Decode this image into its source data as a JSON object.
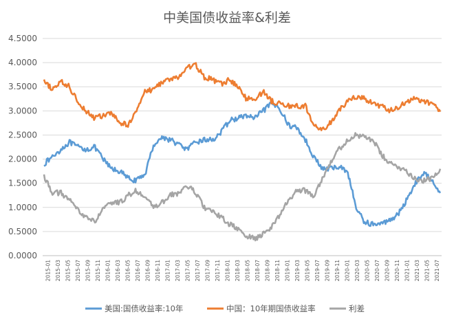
{
  "chart_data": {
    "type": "line",
    "title": "中美国债收益率&利差",
    "xlabel": "",
    "ylabel": "",
    "ylim": [
      0,
      4.5
    ],
    "y_ticks": [
      "0.0000",
      "0.5000",
      "1.0000",
      "1.5000",
      "2.0000",
      "2.5000",
      "3.0000",
      "3.5000",
      "4.0000",
      "4.5000"
    ],
    "x_ticks": [
      "2015-01",
      "2015-03",
      "2015-05",
      "2015-07",
      "2015-09",
      "2015-11",
      "2016-01",
      "2016-03",
      "2016-05",
      "2016-07",
      "2016-09",
      "2016-11",
      "2017-01",
      "2017-03",
      "2017-05",
      "2017-07",
      "2017-09",
      "2017-11",
      "2018-01",
      "2018-03",
      "2018-05",
      "2018-07",
      "2018-09",
      "2018-11",
      "2019-01",
      "2019-03",
      "2019-05",
      "2019-07",
      "2019-09",
      "2019-11",
      "2020-01",
      "2020-03",
      "2020-05",
      "2020-07",
      "2020-09",
      "2020-11",
      "2021-01",
      "2021-03",
      "2021-05",
      "2021-07"
    ],
    "legend_position": "bottom",
    "series": [
      {
        "name": "美国:国债收益率:10年",
        "color": "#5b9bd5",
        "values": [
          1.9,
          2.05,
          2.2,
          2.35,
          2.25,
          2.2,
          2.25,
          2.0,
          1.8,
          1.75,
          1.6,
          1.55,
          1.7,
          2.3,
          2.45,
          2.4,
          2.3,
          2.2,
          2.35,
          2.4,
          2.4,
          2.55,
          2.8,
          2.85,
          2.9,
          2.85,
          3.0,
          3.15,
          3.05,
          2.7,
          2.65,
          2.4,
          2.05,
          1.8,
          1.8,
          1.85,
          1.75,
          1.0,
          0.7,
          0.65,
          0.65,
          0.75,
          0.85,
          1.15,
          1.5,
          1.7,
          1.6,
          1.3
        ]
      },
      {
        "name": "中国：10年期国债收益率",
        "color": "#ed7d31",
        "values": [
          3.6,
          3.45,
          3.6,
          3.5,
          3.2,
          3.0,
          2.85,
          2.9,
          2.95,
          2.75,
          2.7,
          3.05,
          3.4,
          3.45,
          3.6,
          3.65,
          3.7,
          3.9,
          3.95,
          3.7,
          3.65,
          3.55,
          3.65,
          3.5,
          3.25,
          3.25,
          3.4,
          3.2,
          3.15,
          3.1,
          3.1,
          3.1,
          2.7,
          2.6,
          2.75,
          3.0,
          3.2,
          3.3,
          3.25,
          3.15,
          3.1,
          3.0,
          3.05,
          3.2,
          3.25,
          3.2,
          3.15,
          3.0
        ]
      },
      {
        "name": "利差",
        "color": "#a5a5a5",
        "values": [
          1.65,
          1.3,
          1.3,
          1.15,
          0.95,
          0.8,
          0.7,
          0.95,
          1.1,
          1.1,
          1.25,
          1.35,
          1.2,
          1.0,
          1.1,
          1.25,
          1.3,
          1.45,
          1.3,
          1.0,
          0.9,
          0.8,
          0.65,
          0.55,
          0.4,
          0.35,
          0.45,
          0.6,
          0.85,
          1.15,
          1.35,
          1.35,
          1.25,
          1.6,
          1.95,
          2.2,
          2.4,
          2.5,
          2.45,
          2.4,
          2.1,
          1.9,
          1.85,
          1.75,
          1.6,
          1.55,
          1.6,
          1.75
        ]
      }
    ]
  }
}
